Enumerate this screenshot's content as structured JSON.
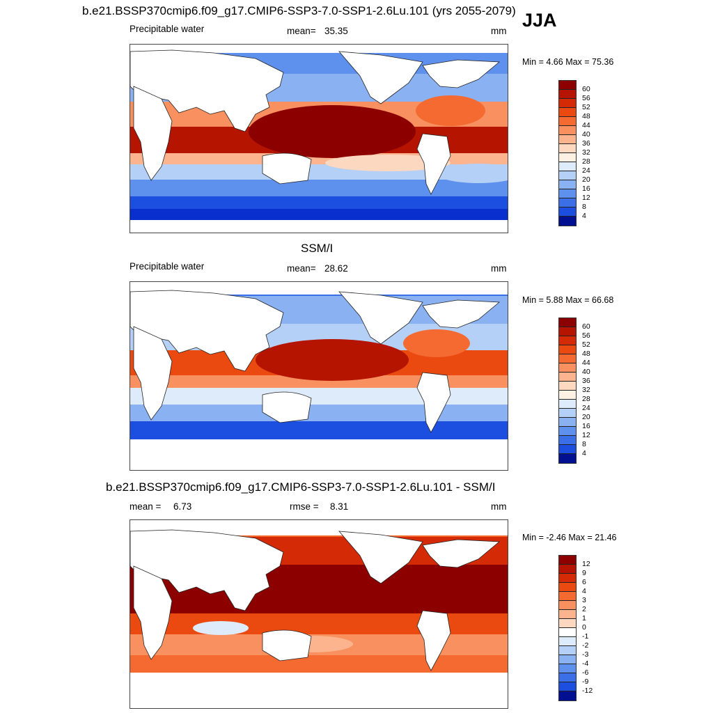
{
  "header": {
    "title": "b.e21.BSSP370cmip6.f09_g17.CMIP6-SSP3-7.0-SSP1-2.6Lu.101 (yrs 2055-2079)",
    "season": "JJA"
  },
  "panels": [
    {
      "id": "model",
      "section_title": "",
      "left_label": "Precipitable water",
      "stat_label": "mean=",
      "stat_value": "35.35",
      "stat2_label": "",
      "stat2_value": "",
      "units": "mm",
      "minmax_text": "Min =   4.66 Max =  75.36",
      "colorbar": {
        "labels": [
          "60",
          "56",
          "52",
          "48",
          "44",
          "40",
          "36",
          "32",
          "28",
          "24",
          "20",
          "16",
          "12",
          "8",
          "4"
        ],
        "colors": [
          "#8c0000",
          "#b41400",
          "#d42a06",
          "#ea4a10",
          "#f46a30",
          "#f89060",
          "#fbb48e",
          "#fdd8c0",
          "#fdf1e4",
          "#deebfb",
          "#b4d0f7",
          "#8ab2f2",
          "#5e90ed",
          "#3a6fe8",
          "#1c4fdf",
          "#0a2fcf",
          "#001090"
        ]
      }
    },
    {
      "id": "obs",
      "section_title": "SSM/I",
      "left_label": "Precipitable water",
      "stat_label": "mean=",
      "stat_value": "28.62",
      "stat2_label": "",
      "stat2_value": "",
      "units": "mm",
      "minmax_text": "Min =   5.88 Max =  66.68",
      "colorbar": {
        "labels": [
          "60",
          "56",
          "52",
          "48",
          "44",
          "40",
          "36",
          "32",
          "28",
          "24",
          "20",
          "16",
          "12",
          "8",
          "4"
        ],
        "colors": [
          "#8c0000",
          "#b41400",
          "#d42a06",
          "#ea4a10",
          "#f46a30",
          "#f89060",
          "#fbb48e",
          "#fdd8c0",
          "#fdf1e4",
          "#deebfb",
          "#b4d0f7",
          "#8ab2f2",
          "#5e90ed",
          "#3a6fe8",
          "#1c4fdf",
          "#0a2fcf",
          "#001090"
        ]
      }
    },
    {
      "id": "diff",
      "section_title": "b.e21.BSSP370cmip6.f09_g17.CMIP6-SSP3-7.0-SSP1-2.6Lu.101 - SSM/I",
      "left_label": "mean =",
      "stat_label": "",
      "stat_value": "6.73",
      "stat2_label": "rmse =",
      "stat2_value": "8.31",
      "units": "mm",
      "minmax_text": "Min =  -2.46 Max =  21.46",
      "colorbar": {
        "labels": [
          "12",
          "9",
          "6",
          "4",
          "3",
          "2",
          "1",
          "0",
          "-1",
          "-2",
          "-3",
          "-4",
          "-6",
          "-9",
          "-12"
        ],
        "colors": [
          "#8c0000",
          "#b41400",
          "#d42a06",
          "#ea4a10",
          "#f46a30",
          "#f89060",
          "#fbb48e",
          "#fdd8c0",
          "#ffffff",
          "#deebfb",
          "#b4d0f7",
          "#8ab2f2",
          "#5e90ed",
          "#3a6fe8",
          "#1c4fdf",
          "#0a2fcf",
          "#001090"
        ]
      }
    }
  ]
}
